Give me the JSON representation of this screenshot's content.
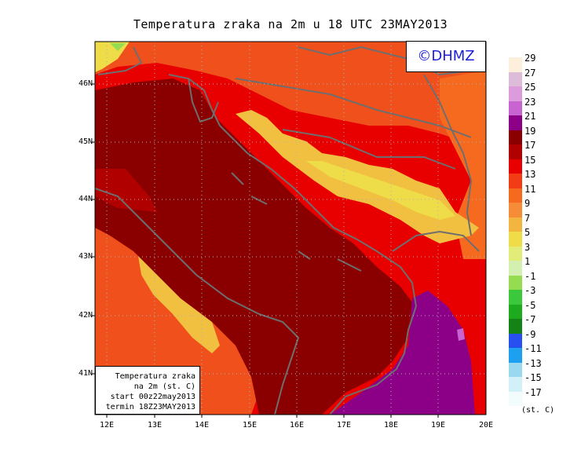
{
  "title": "Temperatura zraka na 2m u 18 UTC 23MAY2013",
  "logo": "©DHMZ",
  "info_box": {
    "line1": "Temperatura zraka",
    "line2": "na 2m (st. C)",
    "line3": "start 00z22may2013",
    "line4": "termin 18Z23MAY2013"
  },
  "lat_labels": [
    "46N",
    "45N",
    "44N",
    "43N",
    "42N",
    "41N"
  ],
  "lon_labels": [
    "12E",
    "13E",
    "14E",
    "15E",
    "16E",
    "17E",
    "18E",
    "19E",
    "20E"
  ],
  "legend": {
    "labels": [
      "29",
      "27",
      "25",
      "23",
      "21",
      "19",
      "17",
      "15",
      "13",
      "11",
      "9",
      "7",
      "5",
      "3",
      "1",
      "-1",
      "-3",
      "-5",
      "-7",
      "-9",
      "-11",
      "-13",
      "-15",
      "-17"
    ],
    "colors": [
      "#fcf0dc",
      "#dcbcd8",
      "#dc9cdc",
      "#c864d0",
      "#8c0088",
      "#8a0000",
      "#b00000",
      "#e80000",
      "#f23c16",
      "#f66a20",
      "#f48c38",
      "#f2b640",
      "#eedc48",
      "#e2ec78",
      "#d4f0b0",
      "#96dc50",
      "#3cc83c",
      "#1eaa1e",
      "#148214",
      "#2850f0",
      "#1ea0f0",
      "#9ad8f0",
      "#d2f0f8",
      "#f2fcfc"
    ],
    "unit": "(st. C)"
  },
  "map": {
    "extent": {
      "lon_min": 11.75,
      "lon_max": 20.0,
      "lat_min": 40.25,
      "lat_max": 46.75
    },
    "sea_color": "#8a0000",
    "land_colors": [
      "#d81010",
      "#f0501c",
      "#f48c38",
      "#f2c040",
      "#eedc48"
    ],
    "border_color": "#6e6e6e"
  }
}
